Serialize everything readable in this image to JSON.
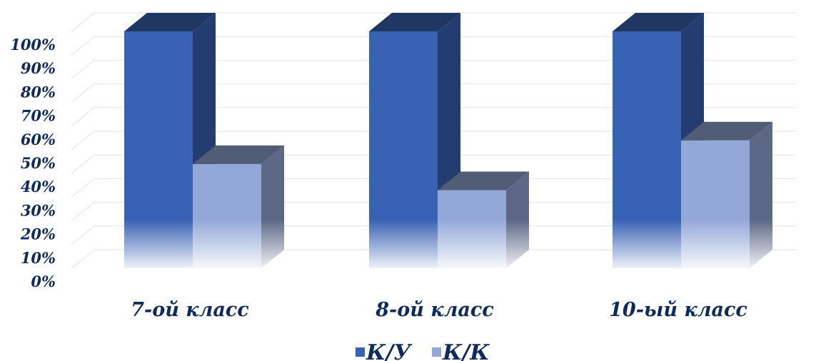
{
  "chart_data": {
    "type": "bar",
    "title": "",
    "xlabel": "",
    "ylabel": "",
    "categories": [
      "7-ой класс",
      "8-ой класс",
      "10-ый класс"
    ],
    "series": [
      {
        "name": "К/У",
        "values": [
          100,
          100,
          100
        ],
        "color": "#3a62b4"
      },
      {
        "name": "К/К",
        "values": [
          44,
          33,
          54
        ],
        "color": "#94a8d8"
      }
    ],
    "ylim": [
      0,
      100
    ],
    "y_ticks": [
      "0%",
      "10%",
      "20%",
      "30%",
      "40%",
      "50%",
      "60%",
      "70%",
      "80%",
      "90%",
      "100%"
    ],
    "grid": true,
    "legend_position": "bottom",
    "style": "3d-column"
  }
}
